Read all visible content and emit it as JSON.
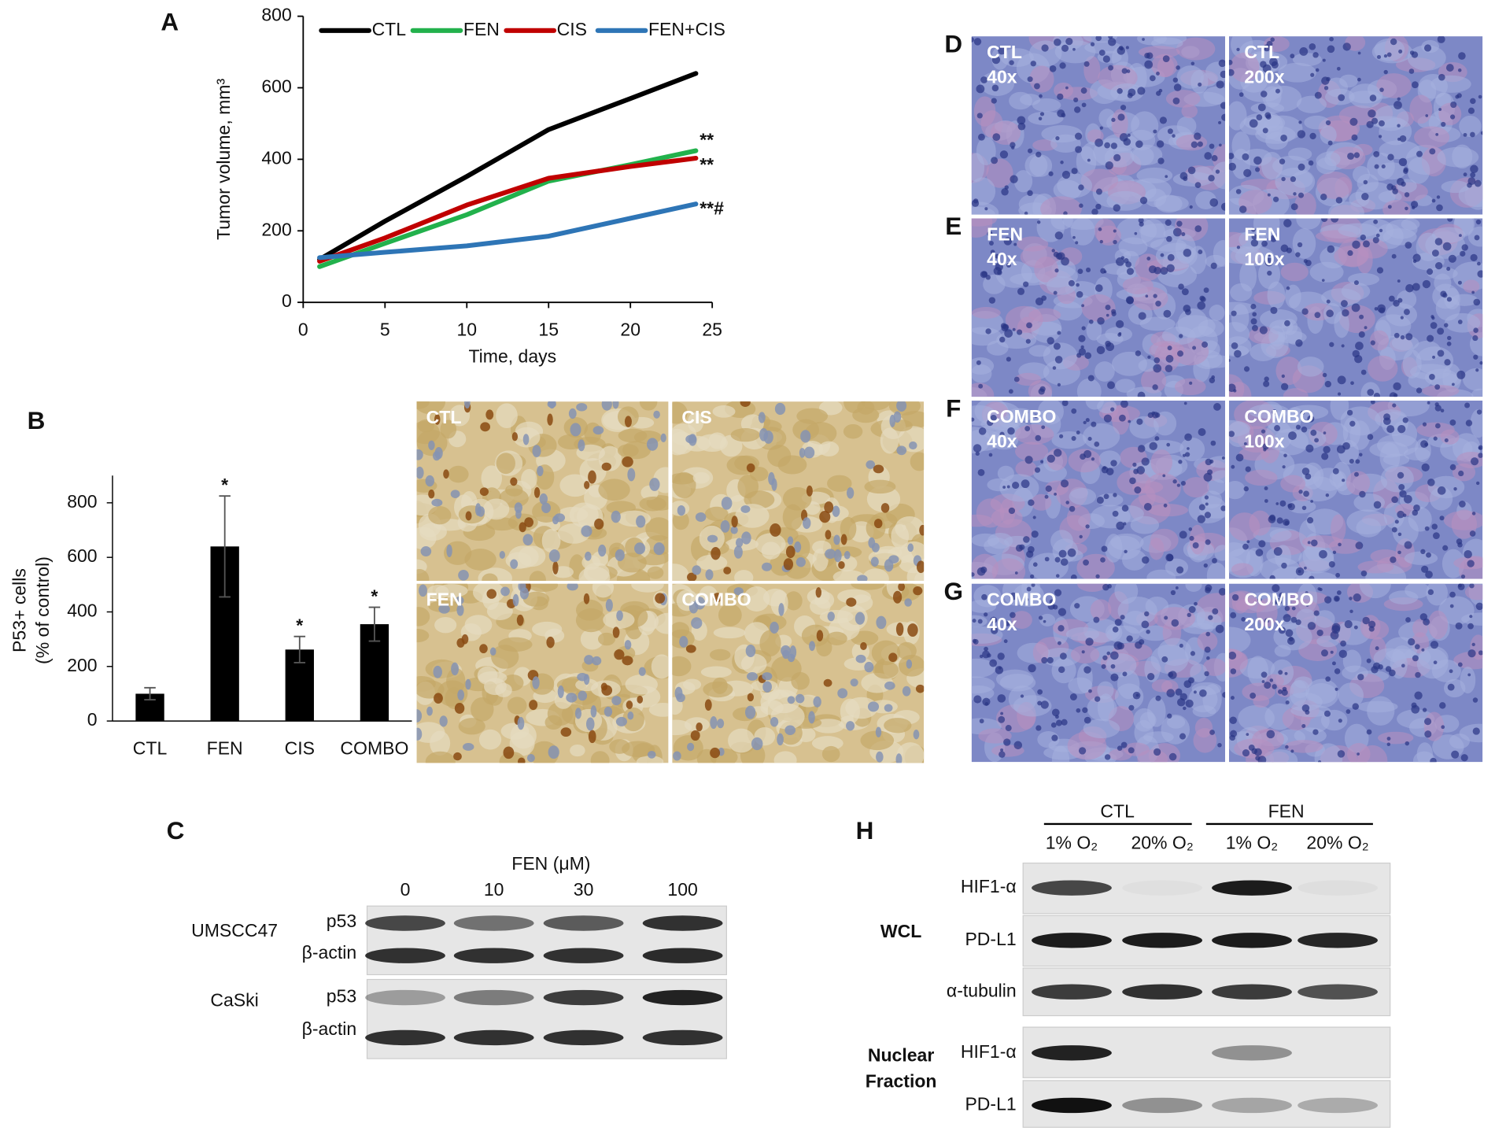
{
  "chart_data": [
    {
      "type": "line",
      "panel": "A",
      "x_label": "Time, days",
      "y_label": "Tumor volume, mm³",
      "x": [
        1,
        5,
        10,
        15,
        20,
        24
      ],
      "xlim": [
        0,
        25
      ],
      "xticks": [
        0,
        5,
        10,
        15,
        20,
        25
      ],
      "ylim": [
        0,
        800
      ],
      "yticks": [
        0,
        200,
        400,
        600,
        800
      ],
      "legend": "top",
      "series": [
        {
          "name": "CTL",
          "color": "#000000",
          "values": [
            120,
            227,
            352,
            483,
            570,
            640
          ]
        },
        {
          "name": "FEN",
          "color": "#22b14c",
          "values": [
            100,
            165,
            245,
            339,
            385,
            424
          ],
          "annotation": "**"
        },
        {
          "name": "CIS",
          "color": "#c00000",
          "values": [
            115,
            180,
            272,
            347,
            380,
            403
          ],
          "annotation": "**"
        },
        {
          "name": "FEN+CIS",
          "color": "#2e75b6",
          "values": [
            125,
            140,
            158,
            185,
            235,
            275
          ],
          "annotation": "**#"
        }
      ]
    },
    {
      "type": "bar",
      "panel": "B",
      "y_label": [
        "P53+ cells",
        "(% of control)"
      ],
      "categories": [
        "CTL",
        "FEN",
        "CIS",
        "COMBO"
      ],
      "values": [
        100,
        640,
        262,
        355
      ],
      "errors": [
        22,
        185,
        48,
        62
      ],
      "annotations": [
        null,
        "*",
        "*",
        "*"
      ],
      "color": "#000000",
      "ylim": [
        0,
        900
      ],
      "yticks": [
        0,
        200,
        400,
        600,
        800
      ]
    }
  ],
  "panel_b_images": [
    "CTL",
    "CIS",
    "FEN",
    "COMBO"
  ],
  "histology": [
    {
      "panel": "D",
      "images": [
        {
          "label": "CTL",
          "magnification": "40x"
        },
        {
          "label": "CTL",
          "magnification": "200x"
        }
      ]
    },
    {
      "panel": "E",
      "images": [
        {
          "label": "FEN",
          "magnification": "40x"
        },
        {
          "label": "FEN",
          "magnification": "100x"
        }
      ]
    },
    {
      "panel": "F",
      "images": [
        {
          "label": "COMBO",
          "magnification": "40x"
        },
        {
          "label": "COMBO",
          "magnification": "100x"
        }
      ]
    },
    {
      "panel": "G",
      "images": [
        {
          "label": "COMBO",
          "magnification": "40x"
        },
        {
          "label": "COMBO",
          "magnification": "200x"
        }
      ]
    }
  ],
  "panel_c": {
    "panel": "C",
    "treatment": "FEN (μM)",
    "doses": [
      0,
      10,
      30,
      100
    ],
    "cell_lines": [
      {
        "name": "UMSCC47",
        "rows": [
          "p53",
          "β-actin"
        ]
      },
      {
        "name": "CaSki",
        "rows": [
          "p53",
          "β-actin"
        ]
      }
    ]
  },
  "panel_h": {
    "panel": "H",
    "groups": [
      "CTL",
      "FEN"
    ],
    "conditions": [
      "1% O₂",
      "20% O₂",
      "1% O₂",
      "20% O₂"
    ],
    "fractions": [
      {
        "name_lines": [
          "WCL"
        ],
        "rows": [
          "HIF1-α",
          "PD-L1",
          "α-tubulin"
        ]
      },
      {
        "name_lines": [
          "Nuclear",
          "Fraction"
        ],
        "rows": [
          "HIF1-α",
          "PD-L1"
        ]
      }
    ]
  }
}
